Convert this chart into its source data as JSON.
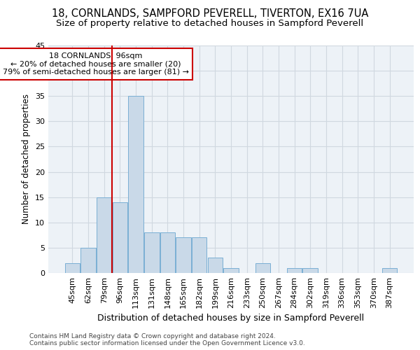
{
  "title1": "18, CORNLANDS, SAMPFORD PEVERELL, TIVERTON, EX16 7UA",
  "title2": "Size of property relative to detached houses in Sampford Peverell",
  "xlabel": "Distribution of detached houses by size in Sampford Peverell",
  "ylabel": "Number of detached properties",
  "categories": [
    "45sqm",
    "62sqm",
    "79sqm",
    "96sqm",
    "113sqm",
    "131sqm",
    "148sqm",
    "165sqm",
    "182sqm",
    "199sqm",
    "216sqm",
    "233sqm",
    "250sqm",
    "267sqm",
    "284sqm",
    "302sqm",
    "319sqm",
    "336sqm",
    "353sqm",
    "370sqm",
    "387sqm"
  ],
  "values": [
    2,
    5,
    15,
    14,
    35,
    8,
    8,
    7,
    7,
    3,
    1,
    0,
    2,
    0,
    1,
    1,
    0,
    0,
    0,
    0,
    1
  ],
  "bar_color": "#c9d9e8",
  "bar_edge_color": "#7aafd4",
  "vline_index": 3,
  "vline_color": "#cc0000",
  "annotation_line1": "18 CORNLANDS: 96sqm",
  "annotation_line2": "← 20% of detached houses are smaller (20)",
  "annotation_line3": "79% of semi-detached houses are larger (81) →",
  "annotation_box_color": "#cc0000",
  "ylim": [
    0,
    45
  ],
  "yticks": [
    0,
    5,
    10,
    15,
    20,
    25,
    30,
    35,
    40,
    45
  ],
  "grid_color": "#d0d8e0",
  "bg_color": "#edf2f7",
  "footer": "Contains HM Land Registry data © Crown copyright and database right 2024.\nContains public sector information licensed under the Open Government Licence v3.0.",
  "title1_fontsize": 10.5,
  "title2_fontsize": 9.5,
  "xlabel_fontsize": 9,
  "ylabel_fontsize": 8.5,
  "tick_fontsize": 8,
  "annotation_fontsize": 8,
  "footer_fontsize": 6.5
}
